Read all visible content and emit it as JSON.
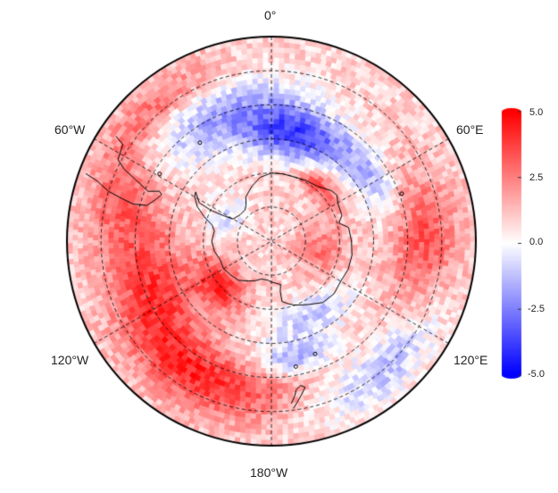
{
  "map": {
    "projection": "south-polar-stereographic",
    "longitude_labels": {
      "top": "0°",
      "upper_left": "60°W",
      "upper_right": "60°E",
      "lower_left": "120°W",
      "lower_right": "120°E",
      "bottom": "180°W"
    },
    "colorbar": {
      "ticks": [
        "5.0",
        "2.5",
        "0.0",
        "-2.5",
        "-5.0"
      ],
      "min": -5.0,
      "max": 5.0,
      "colors": {
        "low": "#0000ff",
        "mid": "#ffffff",
        "high": "#ff0000"
      }
    },
    "field_regions": [
      {
        "lon": 15,
        "lat": -58,
        "value": -4.2,
        "spread_lon": 30,
        "spread_lat": 8
      },
      {
        "lon": -20,
        "lat": -50,
        "value": -2.5,
        "spread_lon": 35,
        "spread_lat": 10
      },
      {
        "lon": 60,
        "lat": -55,
        "value": -2.0,
        "spread_lon": 20,
        "spread_lat": 6
      },
      {
        "lon": 90,
        "lat": -45,
        "value": 2.5,
        "spread_lon": 25,
        "spread_lat": 10
      },
      {
        "lon": 140,
        "lat": -40,
        "value": -2.2,
        "spread_lon": 30,
        "spread_lat": 8
      },
      {
        "lon": -150,
        "lat": -45,
        "value": 3.2,
        "spread_lon": 40,
        "spread_lat": 10
      },
      {
        "lon": -110,
        "lat": -55,
        "value": 2.5,
        "spread_lon": 30,
        "spread_lat": 10
      },
      {
        "lon": -75,
        "lat": -45,
        "value": 2.0,
        "spread_lon": 20,
        "spread_lat": 10
      },
      {
        "lon": -130,
        "lat": -70,
        "value": 3.5,
        "spread_lon": 25,
        "spread_lat": 6
      },
      {
        "lon": 150,
        "lat": -65,
        "value": -2.0,
        "spread_lon": 35,
        "spread_lat": 6
      },
      {
        "lon": 40,
        "lat": -68,
        "value": 2.8,
        "spread_lon": 20,
        "spread_lat": 4
      },
      {
        "lon": 100,
        "lat": -75,
        "value": 1.8,
        "spread_lon": 30,
        "spread_lat": 8
      },
      {
        "lon": -60,
        "lat": -75,
        "value": -1.5,
        "spread_lon": 25,
        "spread_lat": 6
      },
      {
        "lon": 170,
        "lat": -55,
        "value": -2.5,
        "spread_lon": 20,
        "spread_lat": 5
      },
      {
        "lon": -40,
        "lat": -38,
        "value": 2.0,
        "spread_lon": 25,
        "spread_lat": 6
      }
    ]
  }
}
